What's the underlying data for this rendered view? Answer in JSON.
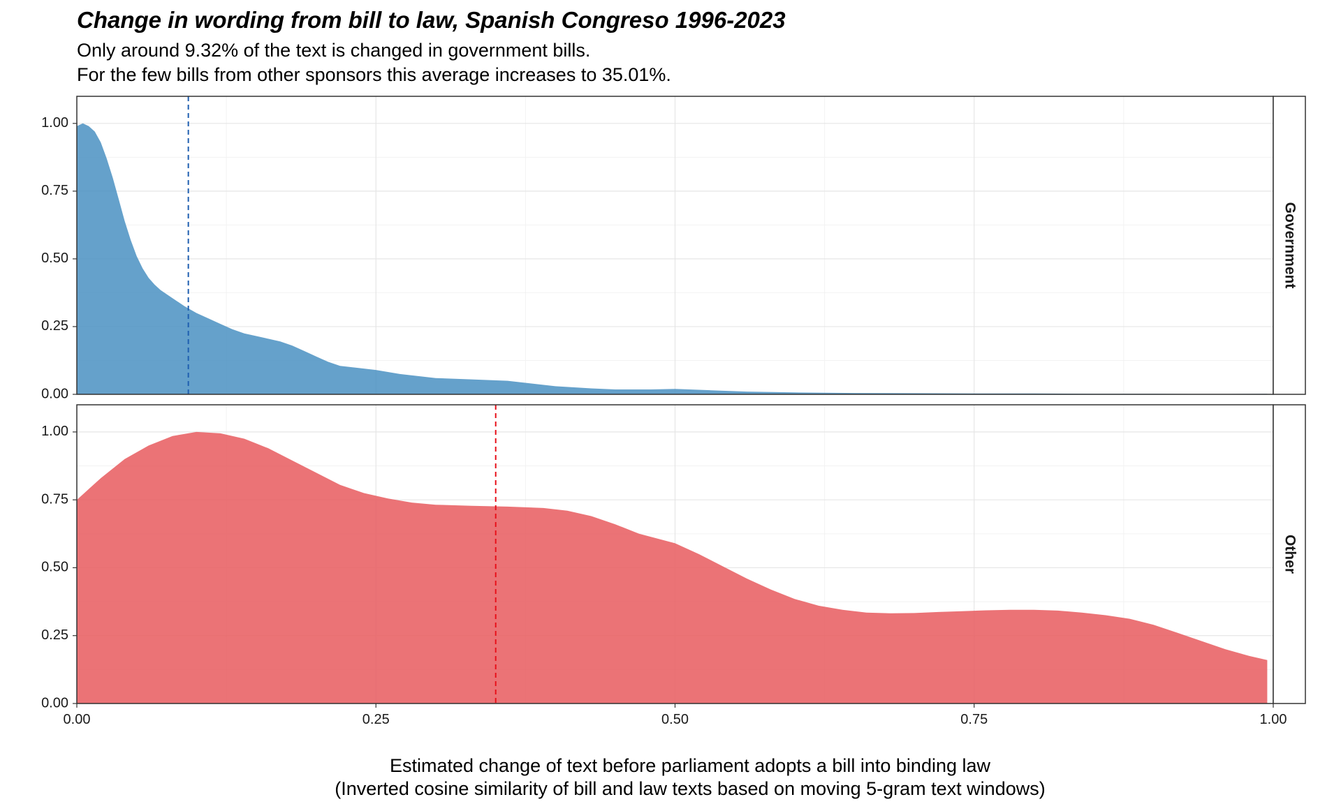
{
  "chart_data": {
    "type": "area",
    "title": "Change in wording from bill to law, Spanish Congreso 1996-2023",
    "subtitle_lines": [
      "Only around 9.32% of the text is changed in government bills.",
      "For the few bills from other sponsors this average increases to 35.01%."
    ],
    "xlabel_lines": [
      "Estimated change of text before parliament adopts a bill into binding law",
      "(Inverted cosine similarity of bill and law texts based on moving 5-gram text windows)"
    ],
    "ylabel": "",
    "xlim": [
      0,
      1
    ],
    "ylim": [
      0,
      1.1
    ],
    "x_ticks": [
      "0.00",
      "0.25",
      "0.50",
      "0.75",
      "1.00"
    ],
    "y_ticks": [
      "0.00",
      "0.25",
      "0.50",
      "0.75",
      "1.00"
    ],
    "grid": true,
    "facet": "vertical",
    "panels": [
      {
        "name": "Government",
        "color": "#4a90c2",
        "mean_line_color": "#1f5fb0",
        "mean": 0.0932,
        "points": [
          [
            0,
            0.99
          ],
          [
            0.005,
            1.0
          ],
          [
            0.01,
            0.99
          ],
          [
            0.015,
            0.97
          ],
          [
            0.02,
            0.93
          ],
          [
            0.025,
            0.87
          ],
          [
            0.03,
            0.8
          ],
          [
            0.035,
            0.72
          ],
          [
            0.04,
            0.64
          ],
          [
            0.045,
            0.57
          ],
          [
            0.05,
            0.51
          ],
          [
            0.055,
            0.465
          ],
          [
            0.06,
            0.43
          ],
          [
            0.065,
            0.405
          ],
          [
            0.07,
            0.385
          ],
          [
            0.08,
            0.355
          ],
          [
            0.09,
            0.325
          ],
          [
            0.1,
            0.3
          ],
          [
            0.11,
            0.28
          ],
          [
            0.12,
            0.26
          ],
          [
            0.13,
            0.24
          ],
          [
            0.14,
            0.225
          ],
          [
            0.15,
            0.215
          ],
          [
            0.16,
            0.205
          ],
          [
            0.17,
            0.195
          ],
          [
            0.18,
            0.18
          ],
          [
            0.19,
            0.16
          ],
          [
            0.2,
            0.14
          ],
          [
            0.21,
            0.12
          ],
          [
            0.22,
            0.105
          ],
          [
            0.25,
            0.09
          ],
          [
            0.27,
            0.075
          ],
          [
            0.3,
            0.06
          ],
          [
            0.33,
            0.055
          ],
          [
            0.36,
            0.05
          ],
          [
            0.38,
            0.04
          ],
          [
            0.4,
            0.03
          ],
          [
            0.43,
            0.022
          ],
          [
            0.45,
            0.018
          ],
          [
            0.48,
            0.018
          ],
          [
            0.5,
            0.02
          ],
          [
            0.53,
            0.015
          ],
          [
            0.56,
            0.01
          ],
          [
            0.6,
            0.007
          ],
          [
            0.65,
            0.005
          ],
          [
            0.7,
            0.004
          ],
          [
            0.75,
            0.003
          ],
          [
            0.8,
            0.003
          ],
          [
            0.85,
            0.002
          ],
          [
            0.9,
            0.002
          ],
          [
            0.95,
            0.001
          ],
          [
            0.995,
            0.002
          ]
        ]
      },
      {
        "name": "Other",
        "color": "#e85a5e",
        "mean_line_color": "#e8101a",
        "mean": 0.3501,
        "points": [
          [
            0,
            0.75
          ],
          [
            0.02,
            0.83
          ],
          [
            0.04,
            0.9
          ],
          [
            0.06,
            0.95
          ],
          [
            0.08,
            0.985
          ],
          [
            0.1,
            1.0
          ],
          [
            0.12,
            0.995
          ],
          [
            0.14,
            0.975
          ],
          [
            0.16,
            0.94
          ],
          [
            0.18,
            0.895
          ],
          [
            0.2,
            0.85
          ],
          [
            0.22,
            0.805
          ],
          [
            0.24,
            0.775
          ],
          [
            0.26,
            0.755
          ],
          [
            0.28,
            0.74
          ],
          [
            0.3,
            0.732
          ],
          [
            0.33,
            0.728
          ],
          [
            0.36,
            0.725
          ],
          [
            0.39,
            0.72
          ],
          [
            0.41,
            0.71
          ],
          [
            0.43,
            0.69
          ],
          [
            0.45,
            0.66
          ],
          [
            0.47,
            0.625
          ],
          [
            0.5,
            0.59
          ],
          [
            0.52,
            0.55
          ],
          [
            0.54,
            0.505
          ],
          [
            0.56,
            0.46
          ],
          [
            0.58,
            0.42
          ],
          [
            0.6,
            0.385
          ],
          [
            0.62,
            0.36
          ],
          [
            0.64,
            0.345
          ],
          [
            0.66,
            0.335
          ],
          [
            0.68,
            0.332
          ],
          [
            0.7,
            0.333
          ],
          [
            0.72,
            0.337
          ],
          [
            0.74,
            0.34
          ],
          [
            0.76,
            0.343
          ],
          [
            0.78,
            0.345
          ],
          [
            0.8,
            0.345
          ],
          [
            0.82,
            0.342
          ],
          [
            0.84,
            0.335
          ],
          [
            0.86,
            0.325
          ],
          [
            0.88,
            0.312
          ],
          [
            0.9,
            0.29
          ],
          [
            0.92,
            0.26
          ],
          [
            0.94,
            0.23
          ],
          [
            0.96,
            0.2
          ],
          [
            0.98,
            0.175
          ],
          [
            0.995,
            0.16
          ]
        ]
      }
    ]
  }
}
